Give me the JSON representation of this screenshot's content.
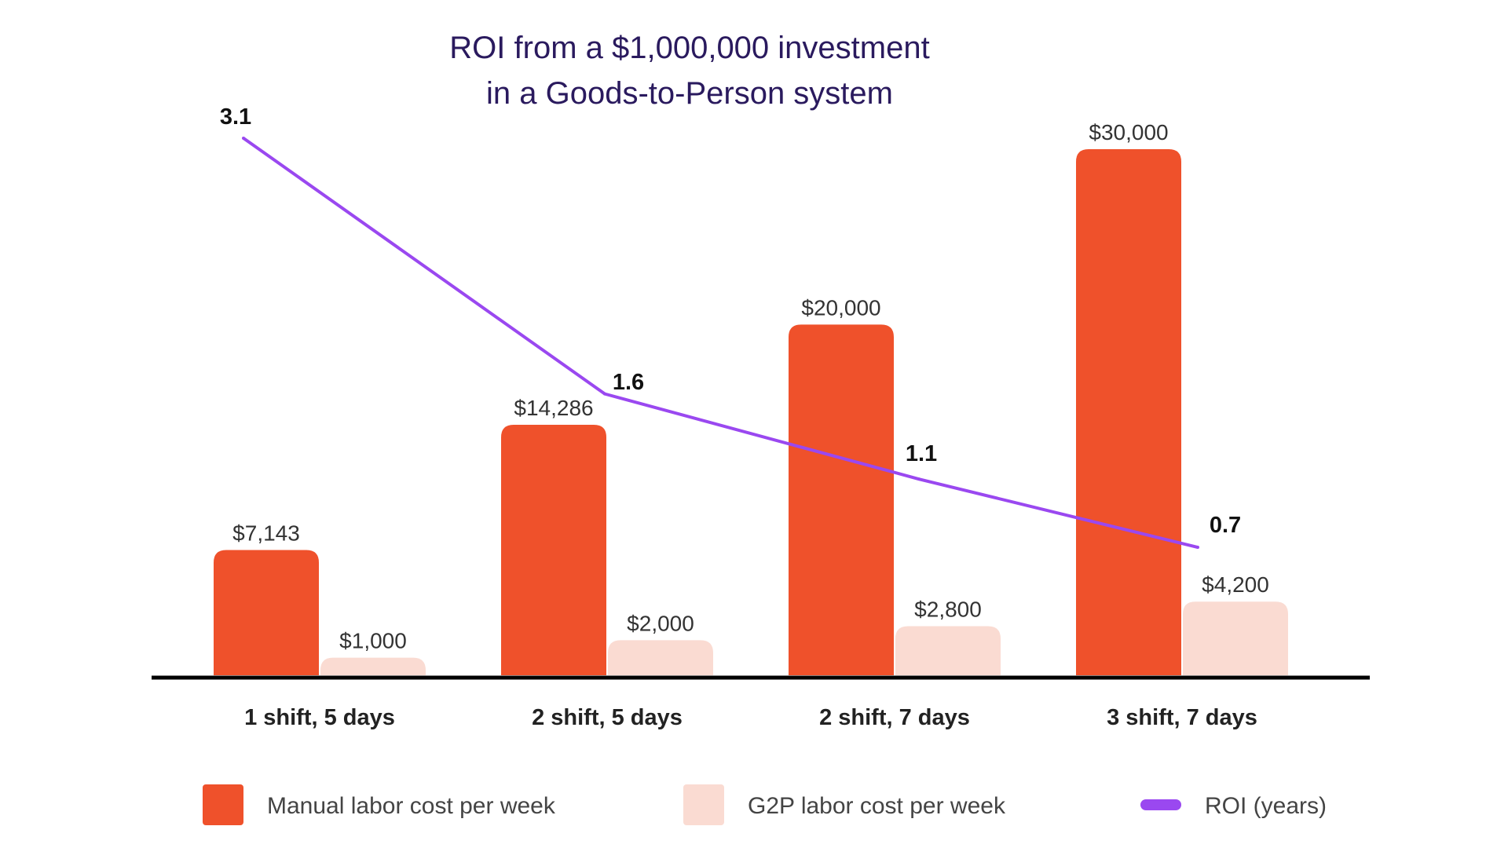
{
  "chart_data": {
    "type": "bar",
    "title": "ROI from a $1,000,000 investment",
    "subtitle": "in a Goods-to-Person system",
    "categories": [
      "1 shift, 5 days",
      "2 shift, 5 days",
      "2 shift, 7 days",
      "3 shift, 7 days"
    ],
    "series": [
      {
        "name": "Manual labor cost per week",
        "type": "bar",
        "color": "#ef512b",
        "values": [
          7143,
          14286,
          20000,
          30000
        ],
        "labels": [
          "$7,143",
          "$14,286",
          "$20,000",
          "$30,000"
        ]
      },
      {
        "name": "G2P labor cost per week",
        "type": "bar",
        "color": "#fadbd2",
        "values": [
          1000,
          2000,
          2800,
          4200
        ],
        "labels": [
          "$1,000",
          "$2,000",
          "$2,800",
          "$4,200"
        ]
      },
      {
        "name": "ROI (years)",
        "type": "line",
        "color": "#9a48f0",
        "values": [
          3.1,
          1.6,
          1.1,
          0.7
        ],
        "labels": [
          "3.1",
          "1.6",
          "1.1",
          "0.7"
        ]
      }
    ],
    "ylim": [
      0,
      30000
    ],
    "roi_ylim": [
      0,
      3.1
    ],
    "grid": false,
    "legend": "bottom",
    "xlabel": "",
    "ylabel": ""
  }
}
